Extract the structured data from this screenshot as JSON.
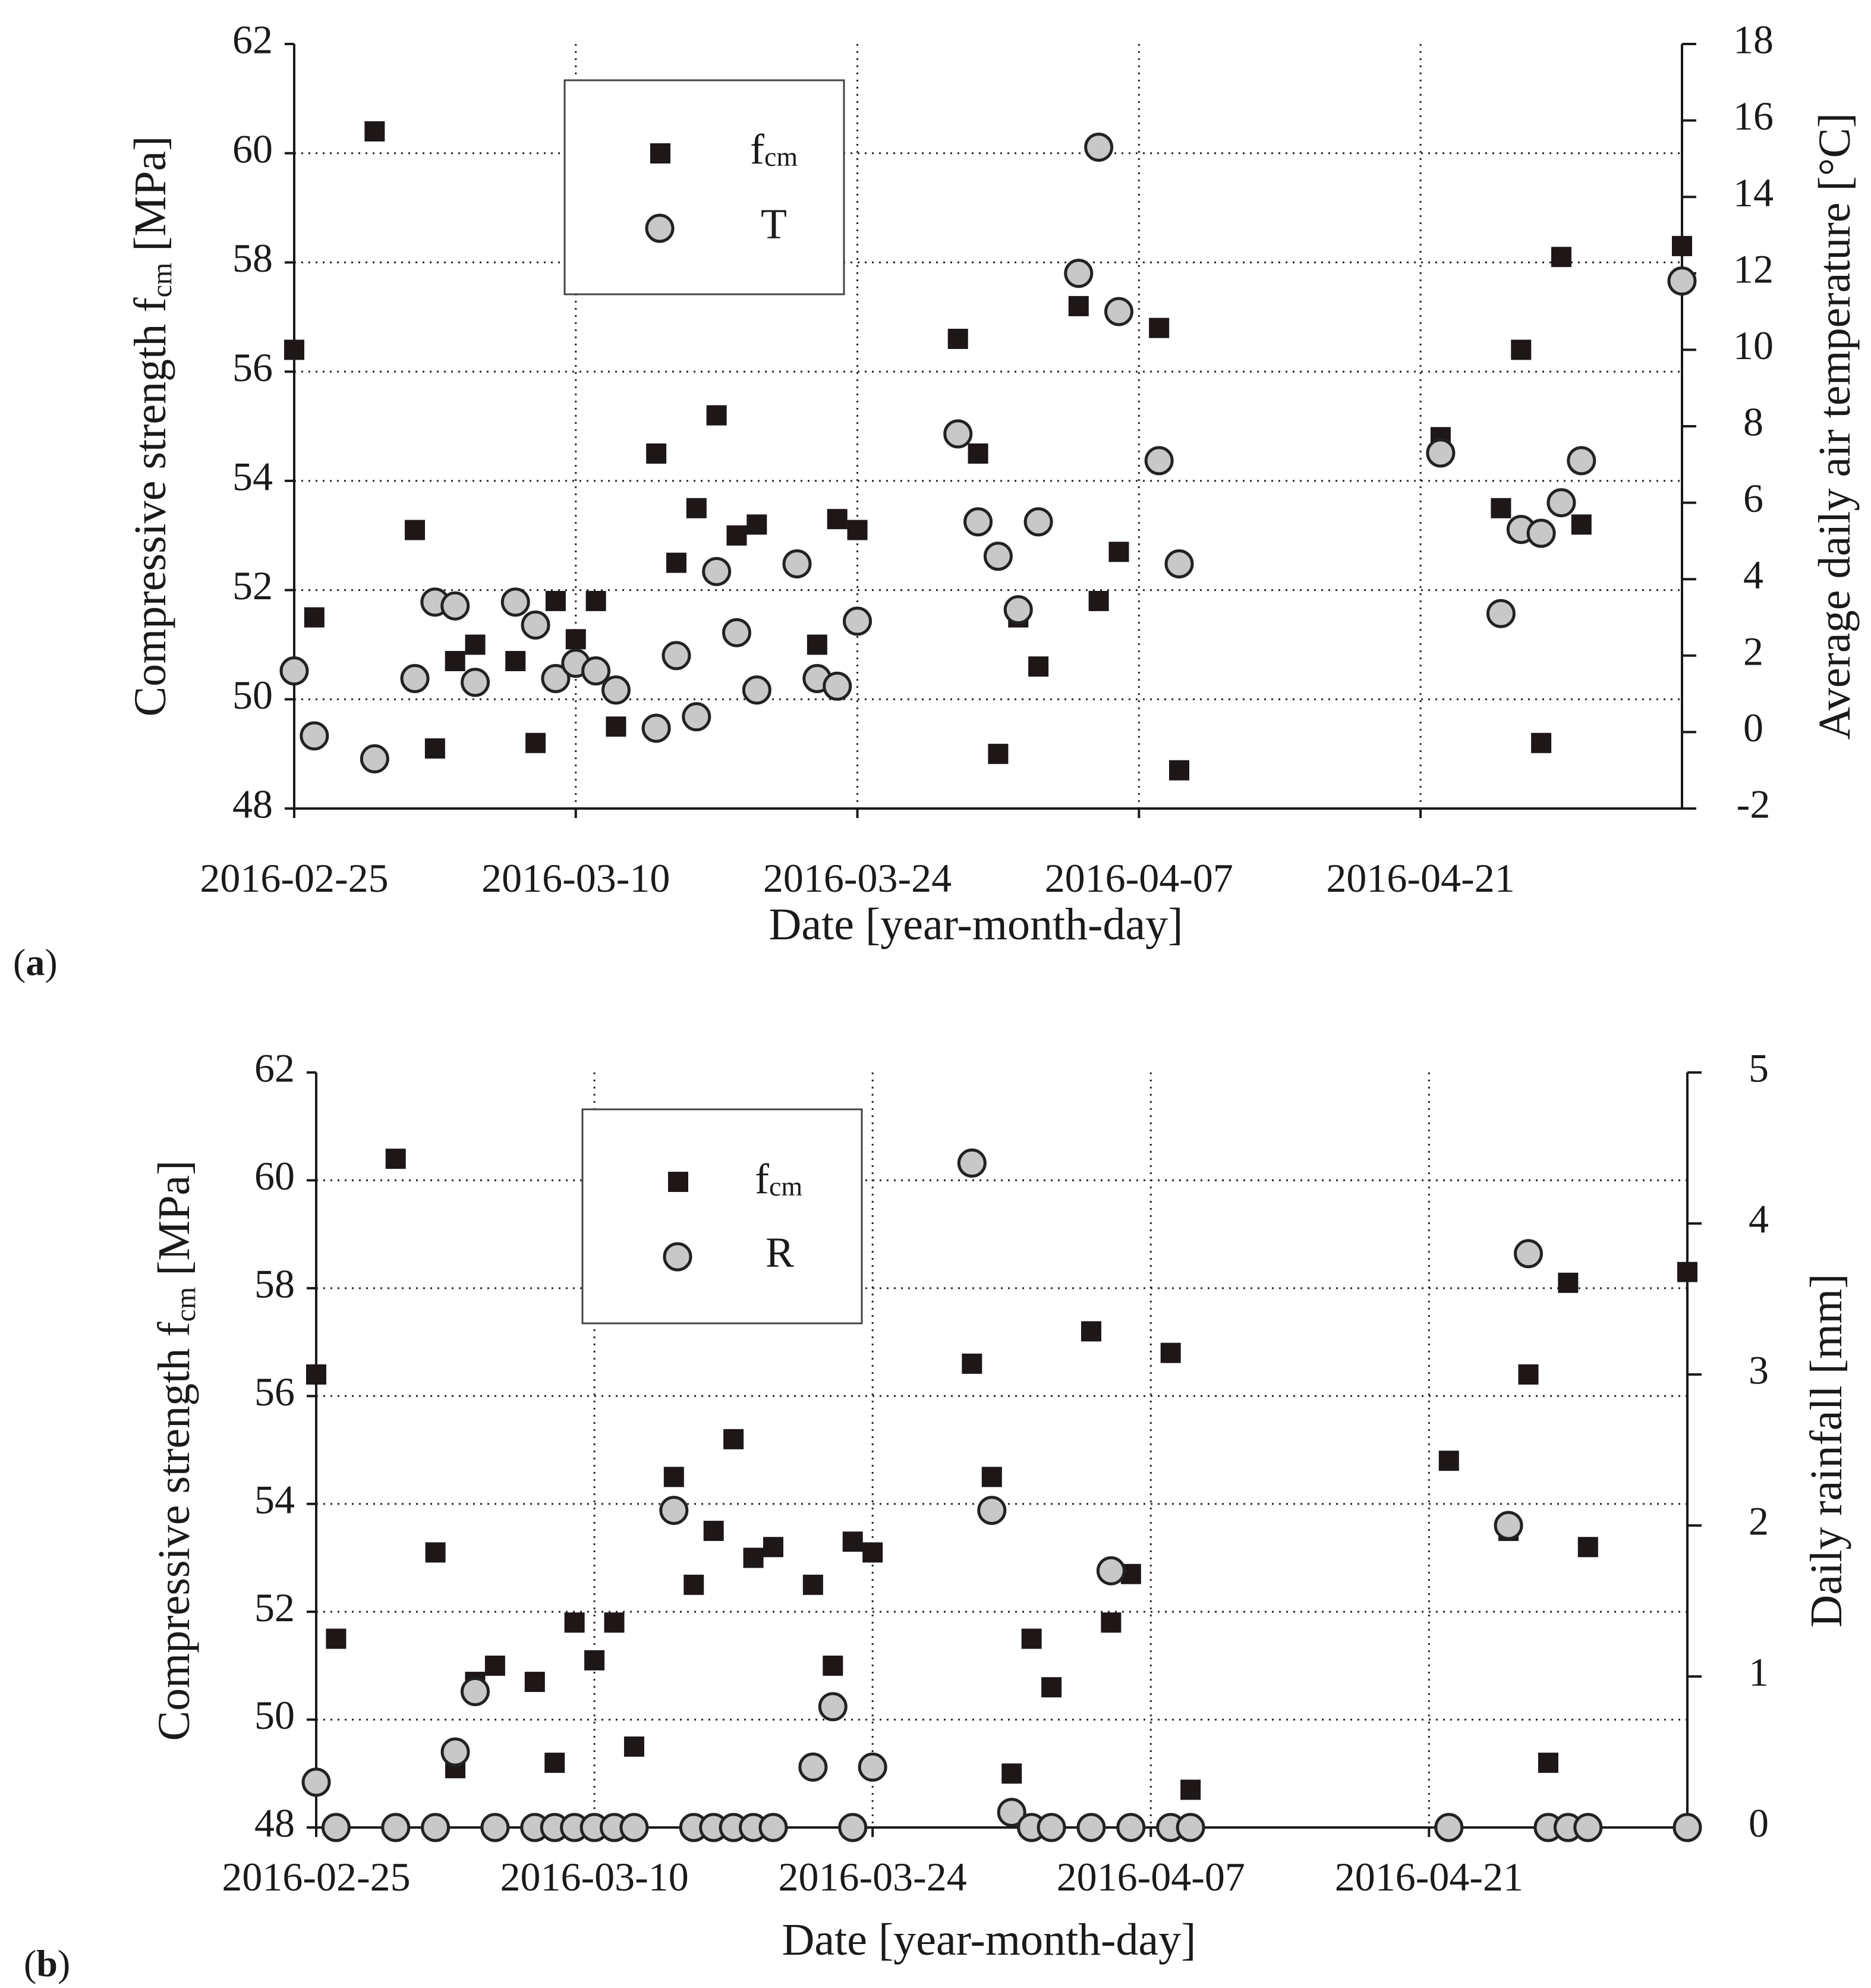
{
  "chart_data": [
    {
      "type": "scatter",
      "panel_label": "(a)",
      "xlabel": "Date [year-month-day]",
      "ylabel_left": "Compressive strength f_cm [MPa]",
      "ylabel_right": "Average daily air temperature [°C]",
      "x_ticks": [
        "2016-02-25",
        "2016-03-10",
        "2016-03-24",
        "2016-04-07",
        "2016-04-21"
      ],
      "xlim_days": [
        0,
        69
      ],
      "ylim_left": [
        48,
        62
      ],
      "yticks_left": [
        48,
        50,
        52,
        54,
        56,
        58,
        60,
        62
      ],
      "ylim_right": [
        -2,
        18
      ],
      "yticks_right": [
        -2,
        0,
        2,
        4,
        6,
        8,
        10,
        12,
        14,
        16,
        18
      ],
      "legend": {
        "placement": "top-left-center",
        "fcm_main": "f",
        "fcm_sub": "cm",
        "series2": "T"
      },
      "series": [
        {
          "name": "fcm",
          "axis": "left",
          "marker": "square",
          "points": [
            [
              0,
              56.4
            ],
            [
              1,
              51.5
            ],
            [
              4,
              60.4
            ],
            [
              6,
              53.1
            ],
            [
              7,
              49.1
            ],
            [
              8,
              50.7
            ],
            [
              9,
              51.0
            ],
            [
              11,
              50.7
            ],
            [
              12,
              49.2
            ],
            [
              13,
              51.8
            ],
            [
              14,
              51.1
            ],
            [
              15,
              51.8
            ],
            [
              16,
              49.5
            ],
            [
              18,
              54.5
            ],
            [
              19,
              52.5
            ],
            [
              20,
              53.5
            ],
            [
              21,
              55.2
            ],
            [
              22,
              53.0
            ],
            [
              23,
              53.2
            ],
            [
              26,
              51.0
            ],
            [
              27,
              53.3
            ],
            [
              28,
              53.1
            ],
            [
              33,
              56.6
            ],
            [
              34,
              54.5
            ],
            [
              35,
              49.0
            ],
            [
              36,
              51.5
            ],
            [
              37,
              50.6
            ],
            [
              39,
              57.2
            ],
            [
              40,
              51.8
            ],
            [
              41,
              52.7
            ],
            [
              43,
              56.8
            ],
            [
              44,
              48.7
            ],
            [
              57,
              54.8
            ],
            [
              60,
              53.5
            ],
            [
              61,
              56.4
            ],
            [
              62,
              49.2
            ],
            [
              63,
              58.1
            ],
            [
              64,
              53.2
            ],
            [
              69,
              58.3
            ]
          ]
        },
        {
          "name": "T",
          "axis": "right",
          "marker": "circle",
          "points": [
            [
              0,
              1.6
            ],
            [
              1,
              -0.1
            ],
            [
              4,
              -0.7
            ],
            [
              6,
              1.4
            ],
            [
              7,
              3.4
            ],
            [
              8,
              3.3
            ],
            [
              9,
              1.3
            ],
            [
              11,
              3.4
            ],
            [
              12,
              2.8
            ],
            [
              13,
              1.4
            ],
            [
              14,
              1.8
            ],
            [
              15,
              1.6
            ],
            [
              16,
              1.1
            ],
            [
              18,
              0.1
            ],
            [
              19,
              2.0
            ],
            [
              20,
              0.4
            ],
            [
              21,
              4.2
            ],
            [
              22,
              2.6
            ],
            [
              23,
              1.1
            ],
            [
              25,
              4.4
            ],
            [
              26,
              1.4
            ],
            [
              27,
              1.2
            ],
            [
              28,
              2.9
            ],
            [
              33,
              7.8
            ],
            [
              34,
              5.5
            ],
            [
              35,
              4.6
            ],
            [
              36,
              3.2
            ],
            [
              37,
              5.5
            ],
            [
              39,
              12.0
            ],
            [
              40,
              15.3
            ],
            [
              41,
              11.0
            ],
            [
              43,
              7.1
            ],
            [
              44,
              4.4
            ],
            [
              57,
              7.3
            ],
            [
              60,
              3.1
            ],
            [
              61,
              5.3
            ],
            [
              62,
              5.2
            ],
            [
              63,
              6.0
            ],
            [
              64,
              7.1
            ],
            [
              69,
              11.8
            ]
          ]
        }
      ]
    },
    {
      "type": "scatter",
      "panel_label": "(b)",
      "xlabel": "Date [year-month-day]",
      "ylabel_left": "Compressive strength f_cm [MPa]",
      "ylabel_right": "Daily rainfall [mm]",
      "x_ticks": [
        "2016-02-25",
        "2016-03-10",
        "2016-03-24",
        "2016-04-07",
        "2016-04-21"
      ],
      "xlim_days": [
        0,
        69
      ],
      "ylim_left": [
        48,
        62
      ],
      "yticks_left": [
        48,
        50,
        52,
        54,
        56,
        58,
        60,
        62
      ],
      "ylim_right": [
        0,
        5
      ],
      "yticks_right": [
        0,
        1,
        2,
        3,
        4,
        5
      ],
      "legend": {
        "placement": "top-left-center",
        "fcm_main": "f",
        "fcm_sub": "cm",
        "series2": "R"
      },
      "series": [
        {
          "name": "fcm",
          "axis": "left",
          "marker": "square",
          "points": [
            [
              0,
              56.4
            ],
            [
              1,
              51.5
            ],
            [
              4,
              60.4
            ],
            [
              6,
              53.1
            ],
            [
              7,
              49.1
            ],
            [
              8,
              50.7
            ],
            [
              9,
              51.0
            ],
            [
              11,
              50.7
            ],
            [
              12,
              49.2
            ],
            [
              13,
              51.8
            ],
            [
              14,
              51.1
            ],
            [
              15,
              51.8
            ],
            [
              16,
              49.5
            ],
            [
              18,
              54.5
            ],
            [
              19,
              52.5
            ],
            [
              20,
              53.5
            ],
            [
              21,
              55.2
            ],
            [
              22,
              53.0
            ],
            [
              23,
              53.2
            ],
            [
              25,
              52.5
            ],
            [
              26,
              51.0
            ],
            [
              27,
              53.3
            ],
            [
              28,
              53.1
            ],
            [
              33,
              56.6
            ],
            [
              34,
              54.5
            ],
            [
              35,
              49.0
            ],
            [
              36,
              51.5
            ],
            [
              37,
              50.6
            ],
            [
              39,
              57.2
            ],
            [
              40,
              51.8
            ],
            [
              41,
              52.7
            ],
            [
              43,
              56.8
            ],
            [
              44,
              48.7
            ],
            [
              57,
              54.8
            ],
            [
              60,
              53.5
            ],
            [
              61,
              56.4
            ],
            [
              62,
              49.2
            ],
            [
              63,
              58.1
            ],
            [
              64,
              53.2
            ],
            [
              69,
              58.3
            ]
          ]
        },
        {
          "name": "R",
          "axis": "right",
          "marker": "circle",
          "points": [
            [
              0,
              0.3
            ],
            [
              1,
              0.0
            ],
            [
              4,
              0.0
            ],
            [
              6,
              0.0
            ],
            [
              7,
              0.5
            ],
            [
              8,
              0.9
            ],
            [
              9,
              0.0
            ],
            [
              11,
              0.0
            ],
            [
              12,
              0.0
            ],
            [
              13,
              0.0
            ],
            [
              14,
              0.0
            ],
            [
              15,
              0.0
            ],
            [
              16,
              0.0
            ],
            [
              18,
              2.1
            ],
            [
              19,
              0.0
            ],
            [
              20,
              0.0
            ],
            [
              21,
              0.0
            ],
            [
              22,
              0.0
            ],
            [
              23,
              0.0
            ],
            [
              25,
              0.4
            ],
            [
              26,
              0.8
            ],
            [
              27,
              0.0
            ],
            [
              28,
              0.4
            ],
            [
              33,
              4.4
            ],
            [
              34,
              2.1
            ],
            [
              35,
              0.1
            ],
            [
              36,
              0.0
            ],
            [
              37,
              0.0
            ],
            [
              39,
              0.0
            ],
            [
              40,
              1.7
            ],
            [
              41,
              0.0
            ],
            [
              43,
              0.0
            ],
            [
              44,
              0.0
            ],
            [
              57,
              0.0
            ],
            [
              60,
              2.0
            ],
            [
              61,
              3.8
            ],
            [
              62,
              0.0
            ],
            [
              63,
              0.0
            ],
            [
              64,
              0.0
            ],
            [
              69,
              0.0
            ]
          ]
        }
      ]
    }
  ]
}
